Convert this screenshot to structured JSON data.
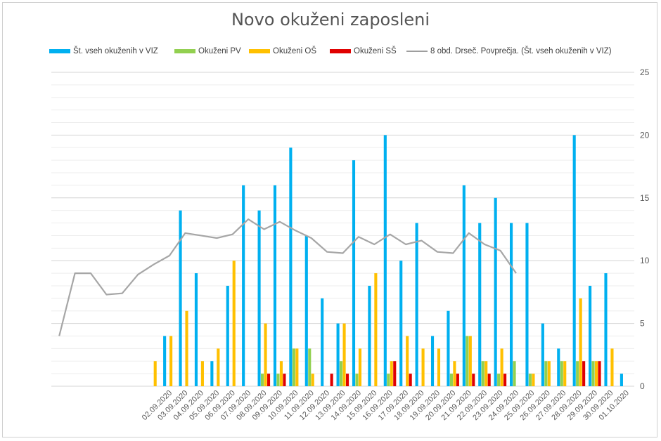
{
  "chart_data": {
    "type": "bar",
    "title": "Novo okuženi zaposleni",
    "xlabel": "",
    "ylabel": "",
    "ylim": [
      0,
      25
    ],
    "yticks": [
      0,
      5,
      10,
      15,
      20,
      25
    ],
    "legend_position": "top",
    "categories": [
      "",
      "",
      "",
      "",
      "",
      "",
      "",
      "02.09.2020",
      "03.09.2020",
      "04.09.2020",
      "05.09.2020",
      "06.09.2020",
      "07.09.2020",
      "08.09.2020",
      "09.09.2020",
      "10.09.2020",
      "11.09.2020",
      "12.09.2020",
      "13.09.2020",
      "14.09.2020",
      "15.09.2020",
      "16.09.2020",
      "17.09.2020",
      "18.09.2020",
      "19.09.2020",
      "20.09.2020",
      "21.09.2020",
      "22.09.2020",
      "23.09.2020",
      "24.09.2020",
      "25.09.2020",
      "26.09.2020",
      "27.09.2020",
      "28.09.2020",
      "29.09.2020",
      "30.09.2020",
      "01.10.2020"
    ],
    "series": [
      {
        "name": "Št. vseh okuženih v VIZ",
        "type": "bar",
        "color": "#00b0f0",
        "values": [
          0,
          0,
          0,
          0,
          0,
          0,
          0,
          4,
          14,
          9,
          2,
          8,
          16,
          14,
          16,
          19,
          12,
          7,
          5,
          18,
          8,
          20,
          10,
          13,
          4,
          6,
          16,
          13,
          15,
          13,
          13,
          5,
          3,
          20,
          8,
          9,
          1
        ]
      },
      {
        "name": "Okuženi PV",
        "type": "bar",
        "color": "#92d050",
        "values": [
          0,
          0,
          0,
          0,
          0,
          0,
          0,
          0,
          0,
          0,
          0,
          0,
          0,
          1,
          1,
          3,
          3,
          0,
          2,
          1,
          0,
          1,
          0,
          0,
          0,
          1,
          4,
          2,
          1,
          2,
          1,
          2,
          2,
          2,
          2,
          0,
          0
        ]
      },
      {
        "name": "Okuženi OŠ",
        "type": "bar",
        "color": "#ffc000",
        "values": [
          0,
          0,
          0,
          0,
          0,
          0,
          2,
          4,
          6,
          2,
          3,
          10,
          0,
          5,
          2,
          3,
          1,
          0,
          5,
          3,
          9,
          2,
          4,
          3,
          3,
          2,
          4,
          2,
          3,
          0,
          1,
          2,
          2,
          7,
          2,
          3,
          0
        ]
      },
      {
        "name": "Okuženi SŠ",
        "type": "bar",
        "color": "#e00000",
        "values": [
          0,
          0,
          0,
          0,
          0,
          0,
          0,
          0,
          0,
          0,
          0,
          0,
          0,
          1,
          1,
          0,
          0,
          1,
          1,
          0,
          0,
          2,
          1,
          0,
          0,
          1,
          1,
          1,
          1,
          0,
          0,
          0,
          0,
          2,
          2,
          0,
          0
        ]
      },
      {
        "name": "8 obd. Drseč. Povprečja. (Št. vseh okuženih v VIZ)",
        "type": "line",
        "color": "#a6a6a6",
        "values": [
          4,
          9,
          9,
          7.3,
          7.4,
          8.9,
          9.7,
          10.4,
          12.2,
          12,
          11.8,
          12.1,
          13.3,
          12.5,
          13.1,
          12.4,
          11.8,
          10.7,
          10.6,
          11.9,
          11.3,
          12.1,
          11.3,
          11.6,
          10.7,
          10.6,
          12.2,
          11.3,
          10.8,
          9,
          null,
          null,
          null,
          null,
          null,
          null,
          null
        ]
      }
    ]
  }
}
